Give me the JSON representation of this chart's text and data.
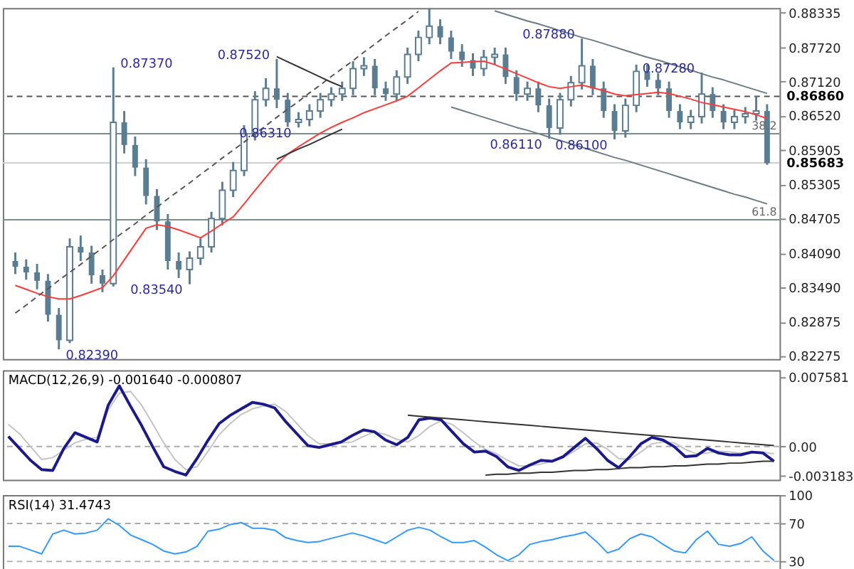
{
  "chart_data": [
    {
      "type": "candlestick",
      "color": "#5a7d91",
      "categories": [
        null,
        null,
        null,
        null,
        null,
        null,
        null,
        null,
        null,
        null,
        null,
        null,
        null,
        null,
        null,
        null,
        null,
        null,
        null,
        null,
        null,
        null,
        null,
        null,
        null,
        null,
        null,
        null,
        null,
        null,
        null,
        null,
        null,
        null,
        null,
        null,
        null,
        null,
        null,
        null,
        null,
        null,
        null,
        null,
        null,
        null,
        null,
        null,
        null,
        null,
        null,
        null,
        null,
        null,
        null,
        null,
        null,
        null,
        null,
        null,
        null,
        null,
        null,
        null,
        null,
        null,
        null,
        null,
        null,
        null
      ],
      "ohlc": [
        [
          0.8395,
          0.841,
          0.8372,
          0.8385
        ],
        [
          0.8385,
          0.8398,
          0.8362,
          0.8375
        ],
        [
          0.8375,
          0.839,
          0.8345,
          0.836
        ],
        [
          0.836,
          0.8372,
          0.8288,
          0.83
        ],
        [
          0.83,
          0.8312,
          0.8239,
          0.8255
        ],
        [
          0.8255,
          0.8435,
          0.825,
          0.842
        ],
        [
          0.842,
          0.844,
          0.8395,
          0.841
        ],
        [
          0.841,
          0.8422,
          0.8355,
          0.837
        ],
        [
          0.837,
          0.838,
          0.834,
          0.8355
        ],
        [
          0.8355,
          0.8737,
          0.835,
          0.864
        ],
        [
          0.864,
          0.866,
          0.8585,
          0.86
        ],
        [
          0.86,
          0.8615,
          0.8545,
          0.856
        ],
        [
          0.856,
          0.8575,
          0.8495,
          0.851
        ],
        [
          0.851,
          0.8522,
          0.845,
          0.8465
        ],
        [
          0.8465,
          0.8478,
          0.838,
          0.8395
        ],
        [
          0.8395,
          0.841,
          0.8365,
          0.838
        ],
        [
          0.838,
          0.8412,
          0.8354,
          0.84
        ],
        [
          0.84,
          0.8435,
          0.8388,
          0.842
        ],
        [
          0.842,
          0.8482,
          0.841,
          0.847
        ],
        [
          0.847,
          0.8535,
          0.8458,
          0.852
        ],
        [
          0.852,
          0.857,
          0.8508,
          0.8555
        ],
        [
          0.8555,
          0.8635,
          0.8545,
          0.862
        ],
        [
          0.862,
          0.8695,
          0.8608,
          0.868
        ],
        [
          0.868,
          0.8718,
          0.8668,
          0.87
        ],
        [
          0.87,
          0.8752,
          0.8665,
          0.868
        ],
        [
          0.868,
          0.8692,
          0.8632,
          0.864
        ],
        [
          0.864,
          0.8658,
          0.8631,
          0.8645
        ],
        [
          0.8645,
          0.8672,
          0.8633,
          0.866
        ],
        [
          0.866,
          0.8692,
          0.8648,
          0.868
        ],
        [
          0.868,
          0.8702,
          0.8668,
          0.869
        ],
        [
          0.869,
          0.8712,
          0.8678,
          0.87
        ],
        [
          0.87,
          0.8748,
          0.8688,
          0.8735
        ],
        [
          0.8735,
          0.8755,
          0.8722,
          0.874
        ],
        [
          0.874,
          0.8752,
          0.8688,
          0.87
        ],
        [
          0.87,
          0.8712,
          0.8678,
          0.869
        ],
        [
          0.869,
          0.8732,
          0.8678,
          0.872
        ],
        [
          0.872,
          0.8772,
          0.8708,
          0.876
        ],
        [
          0.876,
          0.8802,
          0.8748,
          0.879
        ],
        [
          0.879,
          0.884,
          0.8778,
          0.881
        ],
        [
          0.881,
          0.8822,
          0.8778,
          0.879
        ],
        [
          0.879,
          0.8802,
          0.8752,
          0.8765
        ],
        [
          0.8765,
          0.8778,
          0.8738,
          0.875
        ],
        [
          0.875,
          0.8762,
          0.8722,
          0.8735
        ],
        [
          0.8735,
          0.8768,
          0.8722,
          0.8755
        ],
        [
          0.8755,
          0.8772,
          0.8742,
          0.876
        ],
        [
          0.876,
          0.8772,
          0.8708,
          0.872
        ],
        [
          0.872,
          0.8732,
          0.8678,
          0.869
        ],
        [
          0.869,
          0.8712,
          0.8678,
          0.87
        ],
        [
          0.87,
          0.8712,
          0.8658,
          0.867
        ],
        [
          0.867,
          0.8682,
          0.8611,
          0.863
        ],
        [
          0.863,
          0.8692,
          0.8618,
          0.868
        ],
        [
          0.868,
          0.8722,
          0.8668,
          0.871
        ],
        [
          0.871,
          0.8788,
          0.8698,
          0.874
        ],
        [
          0.874,
          0.8752,
          0.8688,
          0.87
        ],
        [
          0.87,
          0.8712,
          0.8648,
          0.866
        ],
        [
          0.866,
          0.8672,
          0.861,
          0.8625
        ],
        [
          0.8625,
          0.8682,
          0.8613,
          0.867
        ],
        [
          0.867,
          0.8742,
          0.8658,
          0.873
        ],
        [
          0.873,
          0.8742,
          0.8703,
          0.8715
        ],
        [
          0.8715,
          0.8727,
          0.8688,
          0.87
        ],
        [
          0.87,
          0.8712,
          0.8648,
          0.866
        ],
        [
          0.866,
          0.8672,
          0.8628,
          0.864
        ],
        [
          0.864,
          0.8662,
          0.8628,
          0.865
        ],
        [
          0.865,
          0.8728,
          0.8638,
          0.869
        ],
        [
          0.869,
          0.8702,
          0.8648,
          0.866
        ],
        [
          0.866,
          0.8672,
          0.8628,
          0.864
        ],
        [
          0.864,
          0.8662,
          0.8628,
          0.865
        ],
        [
          0.865,
          0.8667,
          0.8638,
          0.8655
        ],
        [
          0.8655,
          0.8686,
          0.8643,
          0.866
        ],
        [
          0.866,
          0.8672,
          0.8565,
          0.8568
        ]
      ],
      "series": [
        {
          "type": "line",
          "color": "#ff3b3b",
          "values": [
            0.8352,
            0.8345,
            0.8338,
            0.8332,
            0.8328,
            0.8328,
            0.8334,
            0.8341,
            0.8348,
            0.8369,
            0.8397,
            0.8425,
            0.8453,
            0.8459,
            0.8456,
            0.845,
            0.8443,
            0.8436,
            0.8448,
            0.8461,
            0.8473,
            0.8496,
            0.852,
            0.8543,
            0.8566,
            0.8584,
            0.8597,
            0.8609,
            0.8621,
            0.8631,
            0.864,
            0.8648,
            0.8657,
            0.8664,
            0.8671,
            0.8678,
            0.8686,
            0.8701,
            0.8716,
            0.8731,
            0.8745,
            0.8746,
            0.8747,
            0.8748,
            0.8742,
            0.8734,
            0.8726,
            0.8718,
            0.871,
            0.8703,
            0.87,
            0.8703,
            0.8706,
            0.8701,
            0.8696,
            0.869,
            0.8687,
            0.8689,
            0.8691,
            0.8693,
            0.8691,
            0.8686,
            0.8681,
            0.8675,
            0.8671,
            0.8667,
            0.8663,
            0.8659,
            0.8653,
            0.8647
          ]
        },
        {
          "type": "line",
          "color": "#555555",
          "line_style": "dashed",
          "values": [
            0.8303,
            0.8317,
            0.8332,
            0.8346,
            0.8361,
            0.8375,
            0.8389,
            0.8404,
            0.8418,
            0.8433,
            0.8447,
            0.8461,
            0.8476,
            0.849,
            0.8505,
            0.8519,
            0.8533,
            0.8548,
            0.8562,
            0.8577,
            0.8591,
            0.8605,
            0.862,
            0.8634,
            0.8649,
            0.8663,
            0.8677,
            0.8692,
            0.8706,
            0.8721,
            0.8735,
            0.8749,
            0.8764,
            0.8778,
            0.8793,
            0.8807,
            0.8821,
            0.8836,
            null,
            null,
            null,
            null,
            null,
            null,
            null,
            null,
            null,
            null,
            null,
            null,
            null,
            null,
            null,
            null,
            null,
            null,
            null,
            null,
            null,
            null,
            null,
            null,
            null,
            null,
            null,
            null,
            null,
            null,
            null,
            null
          ]
        },
        {
          "type": "line",
          "color": "#6b7b85",
          "values": [
            null,
            null,
            null,
            null,
            null,
            null,
            null,
            null,
            null,
            null,
            null,
            null,
            null,
            null,
            null,
            null,
            null,
            null,
            null,
            null,
            null,
            null,
            null,
            null,
            null,
            null,
            null,
            null,
            null,
            null,
            null,
            null,
            null,
            null,
            null,
            null,
            null,
            null,
            null,
            null,
            null,
            null,
            null,
            null,
            0.8837,
            0.8831,
            0.8825,
            0.8819,
            0.8814,
            0.8808,
            0.8802,
            0.8796,
            0.879,
            0.8785,
            0.8779,
            0.8773,
            0.8767,
            0.8761,
            0.8755,
            0.875,
            0.8744,
            0.8738,
            0.8732,
            0.8726,
            0.872,
            0.8715,
            0.8709,
            0.8703,
            0.8697,
            0.8691
          ]
        },
        {
          "type": "line",
          "color": "#6b7b85",
          "values": [
            null,
            null,
            null,
            null,
            null,
            null,
            null,
            null,
            null,
            null,
            null,
            null,
            null,
            null,
            null,
            null,
            null,
            null,
            null,
            null,
            null,
            null,
            null,
            null,
            null,
            null,
            null,
            null,
            null,
            null,
            null,
            null,
            null,
            null,
            null,
            null,
            null,
            null,
            null,
            null,
            0.8667,
            0.8661,
            0.8655,
            0.8649,
            0.8643,
            0.8637,
            0.8631,
            0.8626,
            0.862,
            0.8614,
            0.8608,
            0.8602,
            0.8596,
            0.859,
            0.8584,
            0.8578,
            0.8573,
            0.8567,
            0.8561,
            0.8555,
            0.8549,
            0.8543,
            0.8537,
            0.8531,
            0.8525,
            0.8519,
            0.8513,
            0.8508,
            0.8502,
            0.8496
          ]
        },
        {
          "type": "line",
          "color": "#333333",
          "values": [
            null,
            null,
            null,
            null,
            null,
            null,
            null,
            null,
            null,
            null,
            null,
            null,
            null,
            null,
            null,
            null,
            null,
            null,
            null,
            null,
            null,
            null,
            null,
            null,
            0.8756,
            0.8747,
            0.8738,
            0.8729,
            0.872,
            0.8711,
            0.8703,
            null,
            null,
            null,
            null,
            null,
            null,
            null,
            null,
            null,
            null,
            null,
            null,
            null,
            null,
            null,
            null,
            null,
            null,
            null,
            null,
            null,
            null,
            null,
            null,
            null,
            null,
            null,
            null,
            null,
            null,
            null,
            null,
            null,
            null,
            null,
            null,
            null,
            null,
            null
          ]
        },
        {
          "type": "line",
          "color": "#333333",
          "values": [
            null,
            null,
            null,
            null,
            null,
            null,
            null,
            null,
            null,
            null,
            null,
            null,
            null,
            null,
            null,
            null,
            null,
            null,
            null,
            null,
            null,
            null,
            null,
            null,
            0.8575,
            0.8584,
            0.8593,
            0.8601,
            0.861,
            0.8619,
            0.8628,
            null,
            null,
            null,
            null,
            null,
            null,
            null,
            null,
            null,
            null,
            null,
            null,
            null,
            null,
            null,
            null,
            null,
            null,
            null,
            null,
            null,
            null,
            null,
            null,
            null,
            null,
            null,
            null,
            null,
            null,
            null,
            null,
            null,
            null,
            null,
            null,
            null,
            null,
            null
          ]
        }
      ],
      "ylim": [
        0.8222,
        0.8842
      ],
      "yticks": [
        0.88335,
        {
          "value": 0.8772,
          "label": "0.87720"
        },
        {
          "value": 0.8712,
          "label": "0.87120"
        },
        {
          "value": 0.8652,
          "label": "0.86520"
        },
        0.85905,
        0.85305,
        0.84705,
        {
          "value": 0.8409,
          "label": "0.84090"
        },
        {
          "value": 0.8349,
          "label": "0.83490"
        },
        0.82875,
        0.82275
      ],
      "tick_labels": "y",
      "ref_lines": [
        {
          "axis": "y",
          "value": 0.8686,
          "label": "0.86860",
          "color": "#555555",
          "line_style": "dashed"
        },
        {
          "axis": "y",
          "value": 0.862,
          "color": "#7f8c8d"
        },
        {
          "axis": "y",
          "value": 0.8468,
          "color": "#7f8c8d"
        },
        {
          "axis": "y",
          "value": 0.85683,
          "label": "0.85683",
          "color": "#cfcfcf"
        }
      ],
      "annotations": [
        "0.82390",
        "0.87370",
        "0.83540",
        "0.87520",
        "0.86310",
        "0.86110",
        "0.87880",
        "0.86100",
        "0.87280",
        "38.2",
        "61.8"
      ]
    },
    {
      "type": "line",
      "title": "MACD(12,26,9) -0.001640 -0.000807",
      "categories": [
        null,
        null,
        null,
        null,
        null,
        null,
        null,
        null,
        null,
        null,
        null,
        null,
        null,
        null,
        null,
        null,
        null,
        null,
        null,
        null,
        null,
        null,
        null,
        null,
        null,
        null,
        null,
        null,
        null,
        null,
        null,
        null,
        null,
        null,
        null,
        null,
        null,
        null,
        null,
        null,
        null,
        null,
        null,
        null,
        null,
        null,
        null,
        null,
        null,
        null,
        null,
        null,
        null,
        null,
        null,
        null,
        null,
        null,
        null,
        null,
        null,
        null,
        null,
        null,
        null,
        null,
        null,
        null,
        null,
        null
      ],
      "series": [
        {
          "color": "#c4c4c4",
          "values": [
            0.0024,
            0.0014,
            0.0,
            -0.0014,
            -0.0012,
            -0.0004,
            0.0004,
            0.0008,
            0.001,
            0.004,
            0.0058,
            0.006,
            0.0045,
            0.0025,
            0.0004,
            -0.0014,
            -0.0025,
            -0.0022,
            -0.0005,
            0.0013,
            0.0025,
            0.0035,
            0.0041,
            0.0044,
            0.0046,
            0.0038,
            0.0025,
            0.0012,
            0.0003,
            0.0003,
            0.0004,
            0.0005,
            0.0011,
            0.0016,
            0.0013,
            0.0008,
            0.0005,
            0.0012,
            0.0022,
            0.0028,
            0.0024,
            0.0015,
            0.0005,
            -0.0003,
            -0.0008,
            -0.0015,
            -0.0021,
            -0.0021,
            -0.0019,
            -0.0016,
            -0.0012,
            -0.0005,
            0.0003,
            0.0004,
            -0.0003,
            -0.0013,
            -0.0014,
            -0.0006,
            0.0003,
            0.0005,
            0.0004,
            -0.0003,
            -0.0008,
            -0.0007,
            -0.0005,
            -0.0006,
            -0.0007,
            -0.0006,
            -0.0006,
            -0.0008
          ]
        },
        {
          "color": "#1a1a8c",
          "values": [
            0.0011,
            -0.0002,
            -0.0015,
            -0.0025,
            -0.0026,
            -0.0002,
            0.0015,
            0.001,
            0.0005,
            0.0045,
            0.0066,
            0.0044,
            0.0023,
            0.0,
            -0.0022,
            -0.0027,
            -0.0031,
            -0.0013,
            0.0007,
            0.0025,
            0.0034,
            0.0041,
            0.0048,
            0.0046,
            0.0042,
            0.0027,
            0.0014,
            0.0001,
            -0.0001,
            0.0002,
            0.0005,
            0.0012,
            0.0018,
            0.0016,
            0.0007,
            0.0002,
            0.001,
            0.0029,
            0.0031,
            0.0029,
            0.0016,
            0.0003,
            -0.0006,
            -0.0005,
            -0.0011,
            -0.0022,
            -0.0026,
            -0.002,
            -0.0015,
            -0.0016,
            -0.0011,
            -0.0001,
            0.0009,
            -0.0002,
            -0.0015,
            -0.0023,
            -0.0011,
            0.0003,
            0.001,
            0.0007,
            0.0,
            -0.0011,
            -0.001,
            -0.0002,
            -0.0007,
            -0.0009,
            -0.0009,
            -0.0006,
            -0.0007,
            -0.0016
          ]
        },
        {
          "color": "#333333",
          "values": [
            null,
            null,
            null,
            null,
            null,
            null,
            null,
            null,
            null,
            null,
            null,
            null,
            null,
            null,
            null,
            null,
            null,
            null,
            null,
            null,
            null,
            null,
            null,
            null,
            null,
            null,
            null,
            null,
            null,
            null,
            null,
            null,
            null,
            null,
            null,
            null,
            0.0034,
            0.0033,
            0.0032,
            0.0031,
            0.003,
            0.0029,
            0.0028,
            0.0027,
            0.0026,
            0.0025,
            0.0024,
            0.0023,
            0.0022,
            0.0021,
            0.002,
            0.0019,
            0.0018,
            0.0017,
            0.0016,
            0.0015,
            0.0014,
            0.0013,
            0.0012,
            0.0011,
            0.001,
            0.0009,
            0.0008,
            0.0007,
            0.0006,
            0.0005,
            0.0004,
            0.0003,
            0.0002,
            0.0001
          ]
        },
        {
          "color": "#333333",
          "values": [
            null,
            null,
            null,
            null,
            null,
            null,
            null,
            null,
            null,
            null,
            null,
            null,
            null,
            null,
            null,
            null,
            null,
            null,
            null,
            null,
            null,
            null,
            null,
            null,
            null,
            null,
            null,
            null,
            null,
            null,
            null,
            null,
            null,
            null,
            null,
            null,
            null,
            null,
            null,
            null,
            null,
            null,
            null,
            -0.0031,
            -0.003,
            -0.003,
            -0.0029,
            -0.0029,
            -0.0028,
            -0.0028,
            -0.0027,
            -0.0026,
            -0.0026,
            -0.0025,
            -0.0025,
            -0.0024,
            -0.0023,
            -0.0023,
            -0.0022,
            -0.0022,
            -0.0021,
            -0.0021,
            -0.002,
            -0.0019,
            -0.0019,
            -0.0018,
            -0.0018,
            -0.0017,
            -0.0016,
            -0.0016
          ]
        }
      ],
      "ylim": [
        -0.0036,
        0.0083
      ],
      "yticks": [
        0.007581,
        {
          "value": 0,
          "label": "0.00"
        },
        -0.003183
      ],
      "tick_labels": "y",
      "ref_lines": [
        {
          "axis": "y",
          "value": 0,
          "color": "#aaaaaa",
          "line_style": "dashed"
        }
      ]
    },
    {
      "type": "line",
      "title": "RSI(14) 31.4743",
      "categories": [
        null,
        null,
        null,
        null,
        null,
        null,
        null,
        null,
        null,
        null,
        null,
        null,
        null,
        null,
        null,
        null,
        null,
        null,
        null,
        null,
        null,
        null,
        null,
        null,
        null,
        null,
        null,
        null,
        null,
        null,
        null,
        null,
        null,
        null,
        null,
        null,
        null,
        null,
        null,
        null,
        null,
        null,
        null,
        null,
        null,
        null,
        null,
        null,
        null,
        null,
        null,
        null,
        null,
        null,
        null,
        null,
        null,
        null,
        null,
        null,
        null,
        null,
        null,
        null,
        null,
        null,
        null,
        null,
        null,
        null
      ],
      "series": [
        {
          "color": "#3399ff",
          "values": [
            46,
            46,
            42,
            38,
            59,
            63,
            59,
            60,
            63,
            75,
            68,
            58,
            53,
            48,
            41,
            38,
            40,
            46,
            62,
            64,
            69,
            71,
            65,
            65,
            63,
            55,
            52,
            50,
            51,
            54,
            57,
            60,
            57,
            53,
            49,
            56,
            63,
            66,
            63,
            56,
            50,
            50,
            52,
            45,
            37,
            31,
            37,
            48,
            51,
            53,
            56,
            58,
            61,
            51,
            39,
            43,
            54,
            59,
            56,
            48,
            41,
            39,
            53,
            62,
            48,
            46,
            49,
            56,
            41,
            31
          ]
        }
      ],
      "ylim": [
        20,
        100
      ],
      "yticks": [
        100,
        70,
        30
      ],
      "tick_labels": "y",
      "ref_lines": [
        {
          "axis": "y",
          "value": 70,
          "color": "#aaaaaa",
          "line_style": "dashed"
        },
        {
          "axis": "y",
          "value": 30,
          "color": "#aaaaaa",
          "line_style": "dashed"
        }
      ]
    }
  ]
}
